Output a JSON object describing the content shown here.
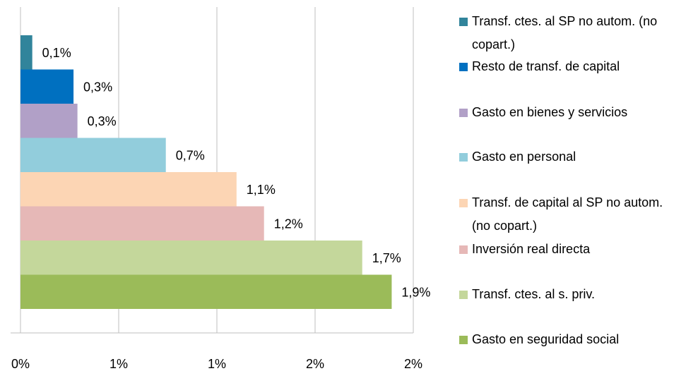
{
  "chart_data": {
    "type": "bar",
    "orientation": "horizontal",
    "categories": [
      "Transf. ctes. al SP no autom. (no copart.)",
      "Resto de transf. de capital",
      "Gasto en bienes y servicios",
      "Gasto en personal",
      "Transf. de capital al SP no autom. (no copart.)",
      "Inversión real directa",
      "Transf. ctes. al s. priv.",
      "Gasto en seguridad social"
    ],
    "values": [
      0.06,
      0.27,
      0.29,
      0.74,
      1.1,
      1.24,
      1.74,
      1.89
    ],
    "value_labels": [
      "0,1%",
      "0,3%",
      "0,3%",
      "0,7%",
      "1,1%",
      "1,2%",
      "1,7%",
      "1,9%"
    ],
    "colors": [
      "#31849b",
      "#0070c0",
      "#b1a0c7",
      "#92cddc",
      "#fcd5b4",
      "#e6b8b7",
      "#c4d79b",
      "#9bbb59"
    ],
    "xlim": [
      0,
      2
    ],
    "xticks": [
      {
        "value": 0,
        "label": "0%"
      },
      {
        "value": 0.5,
        "label": "1%"
      },
      {
        "value": 1,
        "label": "1%"
      },
      {
        "value": 1.5,
        "label": "2%"
      },
      {
        "value": 2,
        "label": "2%"
      }
    ],
    "grid": true
  }
}
